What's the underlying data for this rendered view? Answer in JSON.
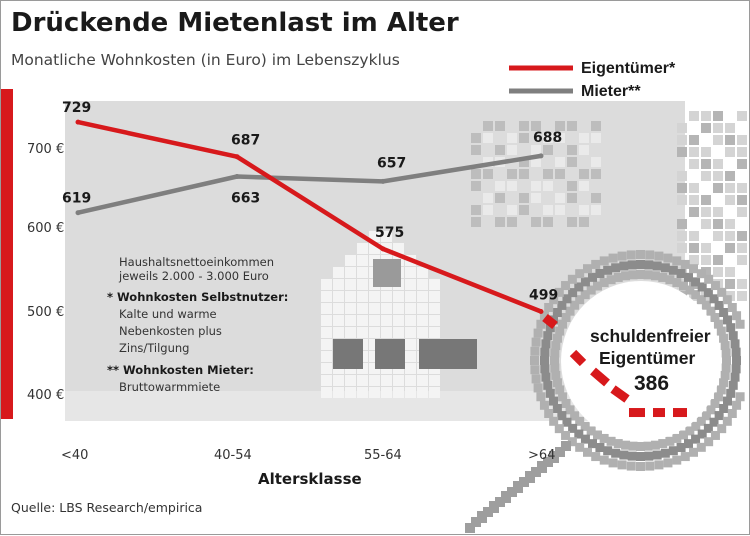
{
  "chart_data": {
    "type": "line",
    "title": "Drückende Mietenlast im Alter",
    "subtitle": "Monatliche Wohnkosten (in Euro) im Lebenszyklus",
    "xlabel": "Altersklasse",
    "ylabel": "",
    "categories": [
      "<40",
      "40-54",
      "55-64",
      ">64"
    ],
    "y_ticks": [
      "700 €",
      "600 €",
      "500 €",
      "400 €"
    ],
    "y_tick_values": [
      700,
      600,
      500,
      400
    ],
    "ylim": [
      370,
      760
    ],
    "grid": false,
    "legend_position": "top-right",
    "series": [
      {
        "name": "Eigentümer*",
        "color": "#d7191c",
        "values": [
          729,
          687,
          575,
          499
        ],
        "labels": [
          "729",
          "687",
          "575",
          "499"
        ]
      },
      {
        "name": "Mieter**",
        "color": "#7f7f7f",
        "values": [
          619,
          663,
          657,
          688
        ],
        "labels": [
          "619",
          "663",
          "657",
          "688"
        ]
      }
    ],
    "callout": {
      "line1": "schuldenfreier",
      "line2": "Eigentümer",
      "value_label": "386",
      "value": 386,
      "category": ">64"
    },
    "notes": {
      "income_line1": "Haushaltsnettoeinkommen",
      "income_line2": "jeweils 2.000 - 3.000 Euro",
      "owner_heading": "* Wohnkosten Selbstnutzer:",
      "owner_items": [
        "Kalte und warme",
        "Nebenkosten plus",
        "Zins/Tilgung"
      ],
      "renter_heading": "** Wohnkosten Mieter:",
      "renter_items": [
        "Bruttowarmmiete"
      ]
    },
    "source": "Quelle: LBS Research/empirica"
  },
  "colors": {
    "owner_red": "#d7191c",
    "renter_gray": "#7f7f7f",
    "plot_gray": "#dcdcdc",
    "pixel_gray": "#c6c6c6",
    "window_gray": "#777777"
  }
}
